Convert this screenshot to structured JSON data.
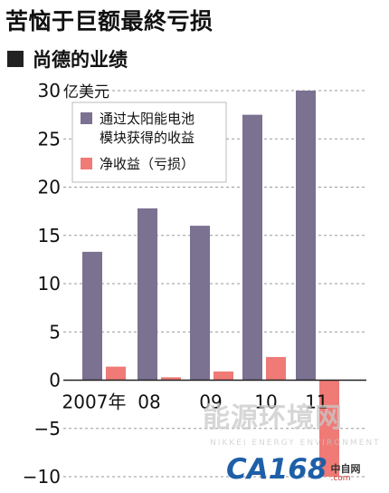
{
  "header": {
    "title": "苦恼于巨额最終亏损",
    "subtitle": "尚德的业绩"
  },
  "chart_data": {
    "type": "bar",
    "unit_label": "亿美元",
    "categories": [
      "2007年",
      "08",
      "09",
      "10",
      "11"
    ],
    "series": [
      {
        "name": "通过太阳能电池\n模块获得的收益",
        "color": "#7b7191",
        "values": [
          13.3,
          17.8,
          16.0,
          27.5,
          30.0
        ]
      },
      {
        "name": "净收益（亏损）",
        "color": "#ef7a76",
        "values": [
          1.4,
          0.3,
          0.9,
          2.4,
          -10.0
        ]
      }
    ],
    "ylim": [
      -10,
      30
    ],
    "yticks": [
      "30",
      "25",
      "20",
      "15",
      "10",
      "5",
      "0",
      "−5",
      "−10"
    ],
    "grid": true,
    "legend_position": "top-left"
  },
  "watermark": {
    "main": "能源环境网",
    "sub": "NIKKEI ENERGY ENVIRONMENT",
    "logo_main": "CA168",
    "logo_cn": "中自网",
    "logo_domain": ".com"
  },
  "colors": {
    "revenue": "#7b7191",
    "net": "#ef7a76",
    "grid": "#9a9a9a"
  }
}
